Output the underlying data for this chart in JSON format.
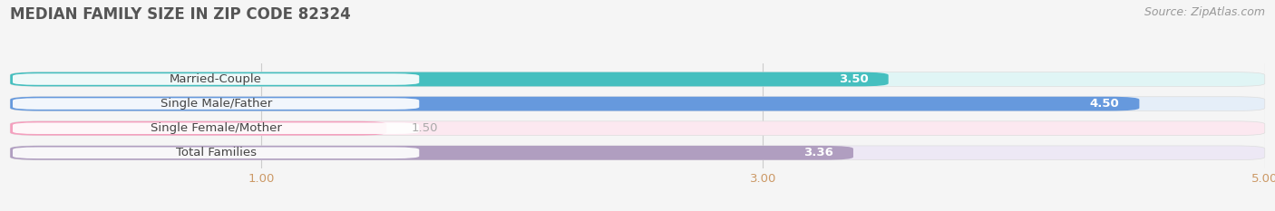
{
  "title": "MEDIAN FAMILY SIZE IN ZIP CODE 82324",
  "source": "Source: ZipAtlas.com",
  "categories": [
    "Married-Couple",
    "Single Male/Father",
    "Single Female/Mother",
    "Total Families"
  ],
  "values": [
    3.5,
    4.5,
    1.5,
    3.36
  ],
  "bar_colors": [
    "#45bfbf",
    "#6699dd",
    "#f4a0be",
    "#b09ec0"
  ],
  "bar_bg_colors": [
    "#e0f5f5",
    "#e5eef8",
    "#fce8f0",
    "#ede8f5"
  ],
  "label_bg_colors": [
    "#e0f5f5",
    "#ddeeff",
    "#fce8f0",
    "#ede8f5"
  ],
  "xlim": [
    0,
    5.0
  ],
  "xticks": [
    1.0,
    3.0,
    5.0
  ],
  "xtick_labels": [
    "1.00",
    "3.00",
    "5.00"
  ],
  "label_fontsize": 9.5,
  "title_fontsize": 12,
  "source_fontsize": 9,
  "value_label_color_inside": "#ffffff",
  "value_label_color_outside": "#aaaaaa",
  "bar_height": 0.58,
  "background_color": "#f5f5f5",
  "grid_color": "#cccccc",
  "tick_color": "#cc9966"
}
